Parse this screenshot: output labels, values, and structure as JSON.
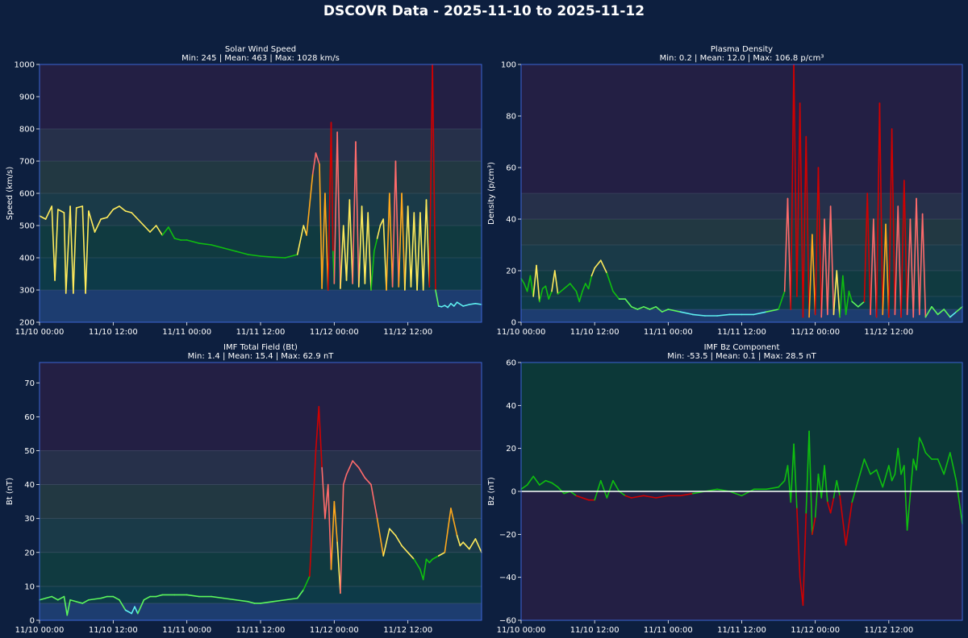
{
  "page_title": "DSCOVR Data - 2025-11-10 to 2025-11-12",
  "colors": {
    "background": "#0d1f3f",
    "plot_border": "#3b64d4",
    "blue": "#5ef0f0",
    "lightgreen": "#5cf75c",
    "green": "#0fbf0f",
    "yellow": "#ffeb5c",
    "orange": "#ffa81c",
    "salmon": "#ff6b6b",
    "red": "#d10000",
    "zero_line": "#ffffff"
  },
  "time_axis": {
    "ticks": [
      "11/10 00:00",
      "11/10 12:00",
      "11/11 00:00",
      "11/11 12:00",
      "11/12 00:00",
      "11/12 12:00"
    ],
    "range_hours": [
      0,
      72
    ]
  },
  "chart_data": [
    {
      "id": "speed",
      "type": "line",
      "title": "Solar Wind Speed",
      "subtitle": "Min: 245 | Mean: 463 | Max: 1028 km/s",
      "ylabel": "Speed (km/s)",
      "ylim": [
        200,
        1000
      ],
      "yticks": [
        200,
        300,
        400,
        500,
        600,
        700,
        800,
        900,
        1000
      ],
      "bands": [
        {
          "from": 200,
          "to": 300,
          "color": "#1d3d70"
        },
        {
          "from": 300,
          "to": 400,
          "color": "#0d3a48"
        },
        {
          "from": 400,
          "to": 500,
          "color": "#103a40"
        },
        {
          "from": 500,
          "to": 600,
          "color": "#1a3a48"
        },
        {
          "from": 600,
          "to": 700,
          "color": "#223842"
        },
        {
          "from": 700,
          "to": 800,
          "color": "#26304a"
        },
        {
          "from": 800,
          "to": 1000,
          "color": "#231f44"
        }
      ],
      "band_lines": [
        300,
        400,
        500,
        600,
        700,
        800
      ],
      "thresholds": [
        {
          "max": 300,
          "color": "blue"
        },
        {
          "max": 400,
          "color": "lightgreen"
        },
        {
          "max": 500,
          "color": "green"
        },
        {
          "max": 600,
          "color": "yellow"
        },
        {
          "max": 700,
          "color": "orange"
        },
        {
          "max": 800,
          "color": "salmon"
        },
        {
          "max": 9999,
          "color": "red"
        }
      ],
      "x_hours": [
        0,
        1,
        2,
        2.5,
        3,
        4,
        4.3,
        5,
        5.5,
        6,
        7,
        7.5,
        8,
        9,
        10,
        11,
        12,
        13,
        14,
        15,
        16,
        17,
        18,
        19,
        20,
        21,
        22,
        23,
        24,
        26,
        28,
        30,
        32,
        34,
        36,
        38,
        40,
        42,
        43,
        43.5,
        44.5,
        45,
        45.6,
        46,
        46.5,
        47,
        47.5,
        47.8,
        48,
        48.5,
        49,
        49.5,
        50,
        50.5,
        51,
        51.5,
        52,
        52.5,
        53,
        53.5,
        54,
        54.5,
        55,
        55.5,
        56,
        56.5,
        57,
        57.5,
        58,
        58.5,
        59,
        59.5,
        60,
        60.5,
        61,
        61.5,
        62,
        62.5,
        63,
        63.5,
        64,
        64.5,
        65,
        65.5,
        66,
        66.5,
        67,
        67.5,
        68,
        69,
        70,
        71,
        72
      ],
      "values": [
        530,
        520,
        560,
        330,
        550,
        540,
        290,
        560,
        290,
        555,
        560,
        290,
        545,
        480,
        520,
        525,
        550,
        560,
        545,
        540,
        520,
        500,
        480,
        500,
        470,
        495,
        460,
        455,
        455,
        445,
        440,
        430,
        420,
        410,
        405,
        402,
        400,
        410,
        500,
        470,
        660,
        725,
        690,
        305,
        600,
        300,
        820,
        420,
        320,
        790,
        305,
        500,
        330,
        580,
        320,
        760,
        310,
        560,
        320,
        540,
        300,
        420,
        460,
        500,
        520,
        300,
        600,
        310,
        700,
        310,
        600,
        300,
        560,
        310,
        540,
        300,
        540,
        300,
        580,
        310,
        1000,
        300,
        250,
        248,
        252,
        246,
        258,
        250,
        262,
        250,
        255,
        258,
        255
      ]
    },
    {
      "id": "density",
      "type": "line",
      "title": "Plasma Density",
      "subtitle": "Min: 0.2 | Mean: 12.0 | Max: 106.8 p/cm³",
      "ylabel": "Density (p/cm³)",
      "ylim": [
        0,
        100
      ],
      "yticks": [
        0,
        20,
        40,
        60,
        80,
        100
      ],
      "bands": [
        {
          "from": 0,
          "to": 5,
          "color": "#1d3d70"
        },
        {
          "from": 5,
          "to": 10,
          "color": "#0d3a48"
        },
        {
          "from": 10,
          "to": 20,
          "color": "#103a40"
        },
        {
          "from": 20,
          "to": 30,
          "color": "#1a3a48"
        },
        {
          "from": 30,
          "to": 40,
          "color": "#223842"
        },
        {
          "from": 40,
          "to": 50,
          "color": "#26304a"
        },
        {
          "from": 50,
          "to": 100,
          "color": "#231f44"
        }
      ],
      "band_lines": [
        5,
        10,
        20,
        30,
        40,
        50
      ],
      "thresholds": [
        {
          "max": 5,
          "color": "blue"
        },
        {
          "max": 10,
          "color": "lightgreen"
        },
        {
          "max": 20,
          "color": "green"
        },
        {
          "max": 30,
          "color": "yellow"
        },
        {
          "max": 40,
          "color": "orange"
        },
        {
          "max": 50,
          "color": "salmon"
        },
        {
          "max": 9999,
          "color": "red"
        }
      ],
      "x_hours": [
        0,
        0.5,
        1,
        1.5,
        2,
        2.5,
        3,
        3.5,
        4,
        4.5,
        5,
        5.5,
        6,
        7,
        8,
        9,
        9.5,
        10,
        10.5,
        11,
        11.5,
        12,
        13,
        14,
        15,
        16,
        17,
        18,
        19,
        20,
        21,
        22,
        23,
        24,
        26,
        28,
        30,
        32,
        34,
        36,
        38,
        40,
        42,
        43,
        43.5,
        44,
        44.5,
        45,
        45.5,
        46,
        46.5,
        47,
        47.5,
        48,
        48.5,
        49,
        49.5,
        50,
        50.5,
        51,
        51.5,
        52,
        52.5,
        53,
        53.5,
        54,
        55,
        56,
        56.5,
        57,
        57.5,
        58,
        58.5,
        59,
        59.5,
        60,
        60.5,
        61,
        61.5,
        62,
        62.5,
        63,
        63.5,
        64,
        64.5,
        65,
        65.5,
        66,
        67,
        68,
        69,
        70,
        71,
        72
      ],
      "values": [
        17,
        15,
        12,
        18,
        10,
        22,
        8,
        13,
        14,
        9,
        12,
        20,
        11,
        13,
        15,
        12,
        8,
        12,
        15,
        13,
        18,
        21,
        24,
        19,
        12,
        9,
        9,
        6,
        5,
        6,
        5,
        6,
        4,
        5,
        4,
        3,
        2.5,
        2.5,
        3,
        3,
        3,
        4,
        5,
        12,
        48,
        5,
        100,
        10,
        85,
        2,
        72,
        2,
        34,
        3,
        60,
        2,
        40,
        3,
        45,
        3,
        20,
        2,
        18,
        3,
        12,
        8,
        6,
        8,
        50,
        3,
        40,
        2,
        85,
        3,
        38,
        2,
        75,
        3,
        45,
        2,
        55,
        3,
        40,
        2,
        48,
        3,
        42,
        2,
        6,
        3,
        5,
        2,
        4,
        6
      ]
    },
    {
      "id": "bt",
      "type": "line",
      "title": "IMF Total Field (Bt)",
      "subtitle": "Min: 1.4 | Mean: 15.4 | Max: 62.9 nT",
      "ylabel": "Bt (nT)",
      "ylim": [
        0,
        76
      ],
      "yticks": [
        0,
        10,
        20,
        30,
        40,
        50,
        60,
        70
      ],
      "bands": [
        {
          "from": 0,
          "to": 5,
          "color": "#1d3d70"
        },
        {
          "from": 5,
          "to": 10,
          "color": "#0d3a48"
        },
        {
          "from": 10,
          "to": 20,
          "color": "#103a40"
        },
        {
          "from": 20,
          "to": 30,
          "color": "#1a3a48"
        },
        {
          "from": 30,
          "to": 40,
          "color": "#223842"
        },
        {
          "from": 40,
          "to": 50,
          "color": "#26304a"
        },
        {
          "from": 50,
          "to": 76,
          "color": "#231f44"
        }
      ],
      "band_lines": [
        5,
        10,
        20,
        30,
        40,
        50
      ],
      "thresholds": [
        {
          "max": 5,
          "color": "blue"
        },
        {
          "max": 10,
          "color": "lightgreen"
        },
        {
          "max": 20,
          "color": "green"
        },
        {
          "max": 30,
          "color": "yellow"
        },
        {
          "max": 40,
          "color": "orange"
        },
        {
          "max": 50,
          "color": "salmon"
        },
        {
          "max": 9999,
          "color": "red"
        }
      ],
      "x_hours": [
        0,
        1,
        2,
        3,
        4,
        4.5,
        5,
        6,
        7,
        8,
        10,
        11,
        12,
        13,
        14,
        15,
        15.5,
        16,
        17,
        18,
        19,
        20,
        22,
        24,
        26,
        28,
        30,
        32,
        34,
        35,
        36,
        38,
        40,
        42,
        43,
        44,
        45,
        45.5,
        46,
        46.5,
        47,
        47.5,
        48,
        48.5,
        49,
        49.5,
        50,
        50.5,
        51,
        52,
        53,
        54,
        55,
        56,
        57,
        58,
        59,
        60,
        61,
        62,
        62.5,
        63,
        63.5,
        64,
        65,
        66,
        67,
        68,
        68.5,
        69,
        70,
        71,
        72
      ],
      "values": [
        6,
        6.5,
        7,
        6,
        7,
        1.5,
        6,
        5.5,
        5,
        6,
        6.5,
        7,
        7,
        6,
        3,
        2,
        4,
        2,
        6,
        7,
        7,
        7.5,
        7.5,
        7.5,
        7,
        7,
        6.5,
        6,
        5.5,
        5,
        5,
        5.5,
        6,
        6.5,
        9,
        13,
        50,
        63,
        45,
        30,
        40,
        15,
        35,
        23,
        8,
        40,
        43,
        45,
        47,
        45,
        42,
        40,
        30,
        19,
        27,
        25,
        22,
        20,
        18,
        15,
        12,
        18,
        17,
        18,
        19,
        20,
        33,
        25,
        22,
        23,
        21,
        24,
        20
      ]
    },
    {
      "id": "bz",
      "type": "line",
      "title": "IMF Bz Component",
      "subtitle": "Min: -53.5 | Mean: 0.1 | Max: 28.5 nT",
      "ylabel": "Bz (nT)",
      "ylim": [
        -60,
        60
      ],
      "yticks": [
        -60,
        -40,
        -20,
        0,
        20,
        40,
        60
      ],
      "bands": [
        {
          "from": -60,
          "to": 0,
          "color": "#231f44"
        },
        {
          "from": 0,
          "to": 60,
          "color": "#0c3838"
        }
      ],
      "band_lines": [],
      "thresholds": [
        {
          "max": 0,
          "color": "red"
        },
        {
          "max": 9999,
          "color": "green"
        }
      ],
      "zero_line": true,
      "x_hours": [
        0,
        1,
        2,
        3,
        4,
        5,
        6,
        7,
        8,
        9,
        10,
        11,
        12,
        13,
        14,
        15,
        16,
        17,
        18,
        20,
        22,
        24,
        26,
        28,
        30,
        32,
        34,
        36,
        38,
        40,
        42,
        43,
        43.5,
        44,
        44.5,
        45,
        45.5,
        46,
        46.5,
        47,
        47.5,
        48,
        48.5,
        49,
        49.5,
        50,
        50.5,
        51,
        51.5,
        52,
        53,
        54,
        55,
        56,
        57,
        58,
        59,
        60,
        60.5,
        61,
        61.5,
        62,
        62.5,
        63,
        64,
        64.5,
        65,
        65.5,
        66,
        67,
        68,
        69,
        70,
        71,
        72
      ],
      "values": [
        1,
        3,
        7,
        3,
        5,
        4,
        2,
        -1,
        0,
        -2,
        -3,
        -4,
        -4,
        5,
        -3,
        5,
        0,
        -2,
        -3,
        -2,
        -3,
        -2,
        -2,
        -1,
        0,
        1,
        0,
        -2,
        1,
        1,
        2,
        5,
        12,
        -5,
        22,
        -8,
        -40,
        -53,
        -10,
        28,
        -20,
        -12,
        8,
        -3,
        12,
        -5,
        -10,
        -3,
        5,
        -2,
        -25,
        -5,
        5,
        15,
        8,
        10,
        2,
        12,
        5,
        8,
        20,
        8,
        12,
        -18,
        15,
        10,
        25,
        22,
        18,
        15,
        15,
        8,
        18,
        5,
        -15
      ]
    }
  ]
}
